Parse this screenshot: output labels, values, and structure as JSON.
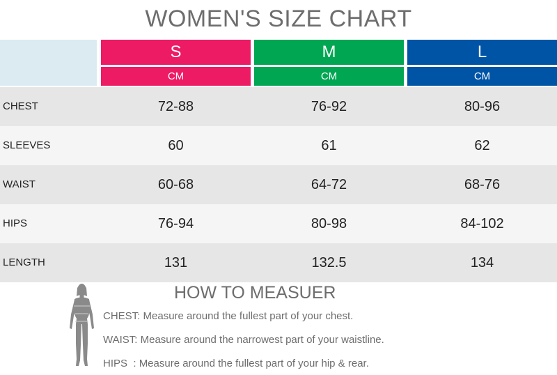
{
  "title": "WOMEN'S SIZE CHART",
  "sizes": [
    {
      "label": "S",
      "unit": "CM",
      "color": "#ed1a64"
    },
    {
      "label": "M",
      "unit": "CM",
      "color": "#00a651"
    },
    {
      "label": "L",
      "unit": "CM",
      "color": "#0054a6"
    }
  ],
  "rows": [
    {
      "label": "CHEST",
      "values": [
        "72-88",
        "76-92",
        "80-96"
      ]
    },
    {
      "label": "SLEEVES",
      "values": [
        "60",
        "61",
        "62"
      ]
    },
    {
      "label": "WAIST",
      "values": [
        "60-68",
        "64-72",
        "68-76"
      ]
    },
    {
      "label": "HIPS",
      "values": [
        "76-94",
        "80-98",
        "84-102"
      ]
    },
    {
      "label": "LENGTH",
      "values": [
        "131",
        "132.5",
        "134"
      ]
    }
  ],
  "how_to": {
    "title": "HOW TO MEASUER",
    "figure_icon": "woman-silhouette-icon",
    "items": [
      {
        "label": "CHEST:",
        "text": "Measure around the fullest part of your chest."
      },
      {
        "label": "WAIST:",
        "text": "Measure around the narrowest part of your waistline."
      },
      {
        "label": "HIPS  :",
        "text": "Measure around the fullest part of your hip & rear."
      }
    ]
  }
}
